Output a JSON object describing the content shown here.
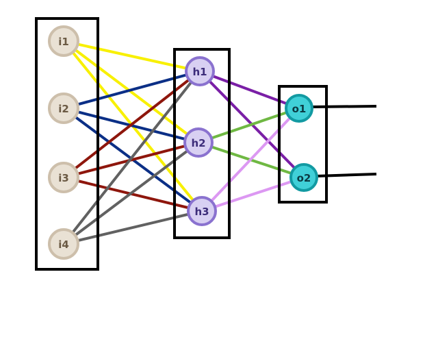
{
  "colors": {
    "input_fill": "#e9e1d4",
    "input_stroke": "#cdbfab",
    "input_text": "#6b5a44",
    "hidden_fill": "#d8d0f2",
    "hidden_stroke": "#8a72cf",
    "hidden_text": "#3d2d7a",
    "output_fill": "#40d0d8",
    "output_stroke": "#129aa2",
    "output_text": "#0b3b44",
    "box_stroke": "#000000",
    "i1": "#f8f000",
    "i2": "#0b2f86",
    "i3": "#8e160c",
    "i4": "#616161",
    "h1": "#7a1fa6",
    "h2": "#6fb843",
    "h3": "#dc98f2"
  },
  "layers": {
    "input": {
      "nodes": [
        {
          "id": "i1",
          "label": "i1"
        },
        {
          "id": "i2",
          "label": "i2"
        },
        {
          "id": "i3",
          "label": "i3"
        },
        {
          "id": "i4",
          "label": "i4"
        }
      ]
    },
    "hidden": {
      "nodes": [
        {
          "id": "h1",
          "label": "h1"
        },
        {
          "id": "h2",
          "label": "h2"
        },
        {
          "id": "h3",
          "label": "h3"
        }
      ]
    },
    "output": {
      "nodes": [
        {
          "id": "o1",
          "label": "o1"
        },
        {
          "id": "o2",
          "label": "o2"
        }
      ]
    }
  },
  "connections": [
    {
      "from": "i1",
      "to": "h1"
    },
    {
      "from": "i1",
      "to": "h2"
    },
    {
      "from": "i1",
      "to": "h3"
    },
    {
      "from": "i2",
      "to": "h1"
    },
    {
      "from": "i2",
      "to": "h2"
    },
    {
      "from": "i2",
      "to": "h3"
    },
    {
      "from": "i3",
      "to": "h1"
    },
    {
      "from": "i3",
      "to": "h2"
    },
    {
      "from": "i3",
      "to": "h3"
    },
    {
      "from": "i4",
      "to": "h1"
    },
    {
      "from": "i4",
      "to": "h2"
    },
    {
      "from": "i4",
      "to": "h3"
    },
    {
      "from": "h1",
      "to": "o1"
    },
    {
      "from": "h1",
      "to": "o2"
    },
    {
      "from": "h2",
      "to": "o1"
    },
    {
      "from": "h2",
      "to": "o2"
    },
    {
      "from": "h3",
      "to": "o1"
    },
    {
      "from": "h3",
      "to": "o2"
    }
  ],
  "outputs": [
    {
      "from": "o1"
    },
    {
      "from": "o2"
    }
  ]
}
